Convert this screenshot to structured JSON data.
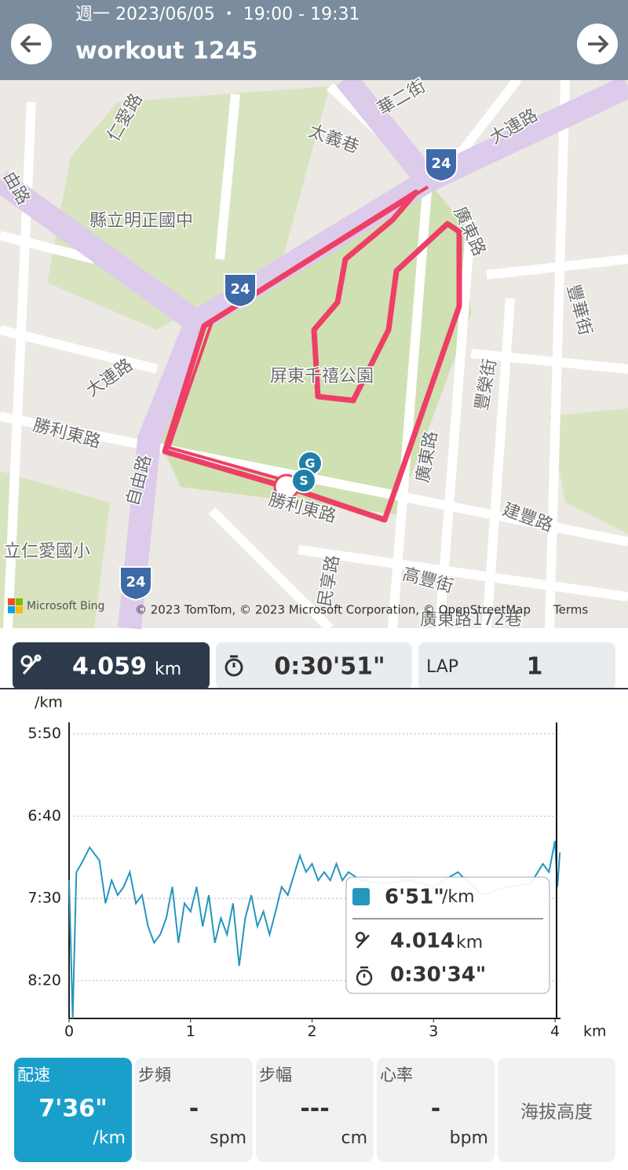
{
  "header": {
    "date": "週一 2023/06/05 ・ 19:00 - 19:31",
    "title": "workout 1245"
  },
  "map": {
    "labels": [
      "仁愛路",
      "太義巷",
      "華二街",
      "大連路",
      "縣立明正國中",
      "廣東路",
      "豐華街",
      "大連路",
      "屏東千禧公園",
      "勝利東路",
      "豐榮街",
      "自由路",
      "廣東路",
      "勝利東路",
      "建豐路",
      "立仁愛國小",
      "高豐街",
      "民享路",
      "廣東路172巷",
      "由路"
    ],
    "route_numbers": [
      "24",
      "24",
      "24"
    ],
    "markers": [
      "G",
      "S"
    ],
    "attribution": "Microsoft Bing",
    "copyright": "© 2023 TomTom, © 2023 Microsoft Corporation, © OpenStreetMap",
    "terms": "Terms"
  },
  "summary": {
    "distance": "4.059",
    "distance_unit": "km",
    "time": "0:30'51\"",
    "lap_label": "LAP",
    "lap": "1"
  },
  "chart_data": {
    "type": "line",
    "y_unit": "/km",
    "x_unit": "km",
    "color": "#2596be",
    "grid": true,
    "x": [
      0,
      0.03,
      0.06,
      0.1,
      0.17,
      0.25,
      0.3,
      0.35,
      0.4,
      0.45,
      0.5,
      0.55,
      0.6,
      0.65,
      0.7,
      0.75,
      0.8,
      0.85,
      0.9,
      0.95,
      1.0,
      1.05,
      1.1,
      1.15,
      1.2,
      1.25,
      1.3,
      1.35,
      1.4,
      1.45,
      1.5,
      1.55,
      1.6,
      1.65,
      1.7,
      1.75,
      1.8,
      1.9,
      1.95,
      2.0,
      2.05,
      2.1,
      2.15,
      2.2,
      2.25,
      2.3,
      2.4,
      2.6,
      2.8,
      3.0,
      3.2,
      3.4,
      3.6,
      3.8,
      3.9,
      3.95,
      4.0,
      4.02,
      4.04
    ],
    "values": [
      439,
      523,
      434,
      429,
      419,
      427,
      453,
      439,
      448,
      443,
      434,
      453,
      448,
      467,
      477,
      472,
      462,
      443,
      477,
      453,
      458,
      443,
      467,
      448,
      477,
      462,
      472,
      453,
      491,
      462,
      448,
      467,
      458,
      472,
      458,
      443,
      448,
      424,
      434,
      429,
      439,
      434,
      439,
      429,
      439,
      434,
      439,
      441,
      439,
      443,
      434,
      448,
      443,
      441,
      429,
      434,
      415,
      443,
      422
    ],
    "xlim": [
      0,
      4.045
    ],
    "ylim": [
      523,
      343
    ],
    "xticks": [
      0,
      1,
      2,
      3,
      4
    ],
    "yticks": [
      {
        "value": 350,
        "label": "5:50"
      },
      {
        "value": 400,
        "label": "6:40"
      },
      {
        "value": 450,
        "label": "7:30"
      },
      {
        "value": 500,
        "label": "8:20"
      }
    ],
    "tooltip": {
      "pace": "6'51\"",
      "pace_unit": "/km",
      "distance": "4.014",
      "distance_unit": "km",
      "time": "0:30'34\""
    }
  },
  "metrics": [
    {
      "label": "配速",
      "value": "7'36\"",
      "unit": "/km"
    },
    {
      "label": "步頻",
      "value": "-",
      "unit": "spm"
    },
    {
      "label": "步幅",
      "value": "---",
      "unit": "cm"
    },
    {
      "label": "心率",
      "value": "-",
      "unit": "bpm"
    },
    {
      "label": "海拔高度"
    }
  ]
}
